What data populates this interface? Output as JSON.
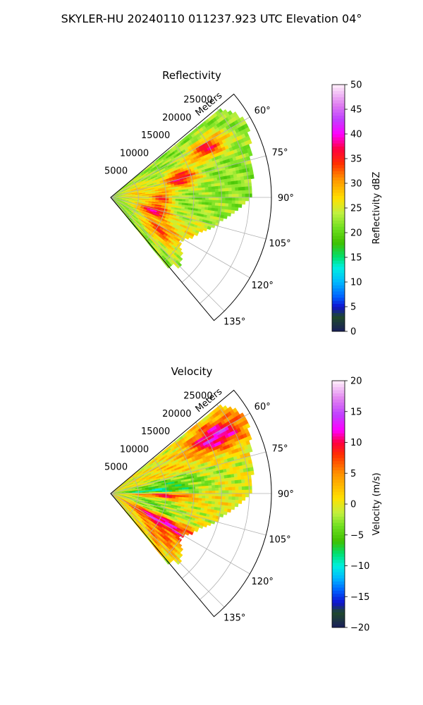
{
  "figure": {
    "suptitle": "SKYLER-HU  20240110  011237.923 UTC Elevation 04°"
  },
  "chart_data": [
    {
      "type": "heatmap",
      "subtype": "radar-sector-ppi",
      "title": "Reflectivity",
      "range_axis_label": "Meters",
      "range_ticks": [
        5000,
        10000,
        15000,
        20000,
        25000
      ],
      "range_tick_labels": [
        "5000",
        "10000",
        "15000",
        "20000",
        "25000"
      ],
      "range_limit": [
        0,
        29000
      ],
      "azimuth_range_deg": [
        50,
        140
      ],
      "azimuth_ticks": [
        60,
        75,
        90,
        105,
        120,
        135
      ],
      "azimuth_tick_labels": [
        "60°",
        "75°",
        "90°",
        "105°",
        "120°",
        "135°"
      ],
      "grid": true,
      "colorbar": {
        "label": "Reflectivity dBZ",
        "range": [
          0,
          50
        ],
        "ticks": [
          0,
          5,
          10,
          15,
          20,
          25,
          30,
          35,
          40,
          45,
          50
        ],
        "tick_labels": [
          "0",
          "5",
          "10",
          "15",
          "20",
          "25",
          "30",
          "35",
          "40",
          "45",
          "50"
        ],
        "stops": [
          {
            "v": 0,
            "c": "#1a1f5c"
          },
          {
            "v": 3,
            "c": "#1f4a2a"
          },
          {
            "v": 5,
            "c": "#1010d0"
          },
          {
            "v": 7,
            "c": "#0060ff"
          },
          {
            "v": 10,
            "c": "#00b8ff"
          },
          {
            "v": 13,
            "c": "#00f0e0"
          },
          {
            "v": 15,
            "c": "#00e070"
          },
          {
            "v": 18,
            "c": "#40c000"
          },
          {
            "v": 21,
            "c": "#70e020"
          },
          {
            "v": 24,
            "c": "#c0f040"
          },
          {
            "v": 27,
            "c": "#ffe000"
          },
          {
            "v": 31,
            "c": "#ff9000"
          },
          {
            "v": 34,
            "c": "#ff3000"
          },
          {
            "v": 37,
            "c": "#ff0040"
          },
          {
            "v": 40,
            "c": "#ff00ff"
          },
          {
            "v": 43,
            "c": "#c040ff"
          },
          {
            "v": 46,
            "c": "#e080f0"
          },
          {
            "v": 50,
            "c": "#fff0fa"
          }
        ]
      },
      "fill_pattern": {
        "background_value": 22,
        "bands": [
          {
            "theta": [
              58,
              68
            ],
            "r": [
              16000,
              23000
            ],
            "value": 36
          },
          {
            "theta": [
              68,
              82
            ],
            "r": [
              10000,
              16000
            ],
            "value": 37
          },
          {
            "theta": [
              82,
              100
            ],
            "r": [
              7000,
              11000
            ],
            "value": 35
          },
          {
            "theta": [
              100,
              115
            ],
            "r": [
              5000,
              11000
            ],
            "value": 39
          },
          {
            "theta": [
              115,
              132
            ],
            "r": [
              7000,
              15000
            ],
            "value": 34
          },
          {
            "theta": [
              60,
              100
            ],
            "r": [
              2000,
              8000
            ],
            "value": 28
          },
          {
            "theta": [
              105,
              130
            ],
            "r": [
              13000,
              20000
            ],
            "value": 27
          }
        ],
        "max_range_by_theta": [
          {
            "theta": 52,
            "r": 25500
          },
          {
            "theta": 60,
            "r": 28000
          },
          {
            "theta": 75,
            "r": 26000
          },
          {
            "theta": 90,
            "r": 25000
          },
          {
            "theta": 100,
            "r": 21000
          },
          {
            "theta": 110,
            "r": 17500
          },
          {
            "theta": 122,
            "r": 14500
          },
          {
            "theta": 135,
            "r": 17500
          },
          {
            "theta": 138,
            "r": 16000
          }
        ]
      }
    },
    {
      "type": "heatmap",
      "subtype": "radar-sector-ppi",
      "title": "Velocity",
      "range_axis_label": "Meters",
      "range_ticks": [
        5000,
        10000,
        15000,
        20000,
        25000
      ],
      "range_tick_labels": [
        "5000",
        "10000",
        "15000",
        "20000",
        "25000"
      ],
      "range_limit": [
        0,
        29000
      ],
      "azimuth_range_deg": [
        50,
        140
      ],
      "azimuth_ticks": [
        60,
        75,
        90,
        105,
        120,
        135
      ],
      "azimuth_tick_labels": [
        "60°",
        "75°",
        "90°",
        "105°",
        "120°",
        "135°"
      ],
      "grid": true,
      "colorbar": {
        "label": "Velocity (m/s)",
        "range": [
          -20,
          20
        ],
        "ticks": [
          -20,
          -15,
          -10,
          -5,
          0,
          5,
          10,
          15,
          20
        ],
        "tick_labels": [
          "−20",
          "−15",
          "−10",
          "−5",
          "0",
          "5",
          "10",
          "15",
          "20"
        ],
        "stops": [
          {
            "v": -20,
            "c": "#1a1f5c"
          },
          {
            "v": -17.5,
            "c": "#1f4a2a"
          },
          {
            "v": -16,
            "c": "#1010d0"
          },
          {
            "v": -14,
            "c": "#0060ff"
          },
          {
            "v": -12,
            "c": "#00b8ff"
          },
          {
            "v": -10,
            "c": "#00f0e0"
          },
          {
            "v": -8,
            "c": "#00e070"
          },
          {
            "v": -6,
            "c": "#40c000"
          },
          {
            "v": -3.5,
            "c": "#70e020"
          },
          {
            "v": -1.5,
            "c": "#c0f040"
          },
          {
            "v": 1,
            "c": "#ffe000"
          },
          {
            "v": 5,
            "c": "#ff9000"
          },
          {
            "v": 8,
            "c": "#ff3000"
          },
          {
            "v": 10,
            "c": "#ff0040"
          },
          {
            "v": 12,
            "c": "#ff00ff"
          },
          {
            "v": 14.5,
            "c": "#c040ff"
          },
          {
            "v": 17,
            "c": "#e080f0"
          },
          {
            "v": 20,
            "c": "#fff0fa"
          }
        ]
      },
      "fill_pattern": {
        "background_value": 0,
        "bands": [
          {
            "theta": [
              55,
              68
            ],
            "r": [
              16000,
              27000
            ],
            "value": 13
          },
          {
            "theta": [
              62,
              78
            ],
            "r": [
              6000,
              16000
            ],
            "value": 2
          },
          {
            "theta": [
              75,
              86
            ],
            "r": [
              3000,
              18000
            ],
            "value": -5
          },
          {
            "theta": [
              84,
              90
            ],
            "r": [
              2000,
              14000
            ],
            "value": -11
          },
          {
            "theta": [
              89,
              96
            ],
            "r": [
              5000,
              14000
            ],
            "value": 11
          },
          {
            "theta": [
              96,
              110
            ],
            "r": [
              3000,
              12000
            ],
            "value": -4
          },
          {
            "theta": [
              108,
              116
            ],
            "r": [
              6000,
              15000
            ],
            "value": -10
          },
          {
            "theta": [
              112,
              126
            ],
            "r": [
              4000,
              17000
            ],
            "value": 13
          },
          {
            "theta": [
              122,
              138
            ],
            "r": [
              8000,
              16000
            ],
            "value": 6
          }
        ],
        "max_range_by_theta": [
          {
            "theta": 52,
            "r": 25500
          },
          {
            "theta": 60,
            "r": 28000
          },
          {
            "theta": 75,
            "r": 26000
          },
          {
            "theta": 90,
            "r": 25000
          },
          {
            "theta": 100,
            "r": 21000
          },
          {
            "theta": 110,
            "r": 17500
          },
          {
            "theta": 122,
            "r": 14500
          },
          {
            "theta": 135,
            "r": 17500
          },
          {
            "theta": 138,
            "r": 16000
          }
        ]
      }
    }
  ]
}
